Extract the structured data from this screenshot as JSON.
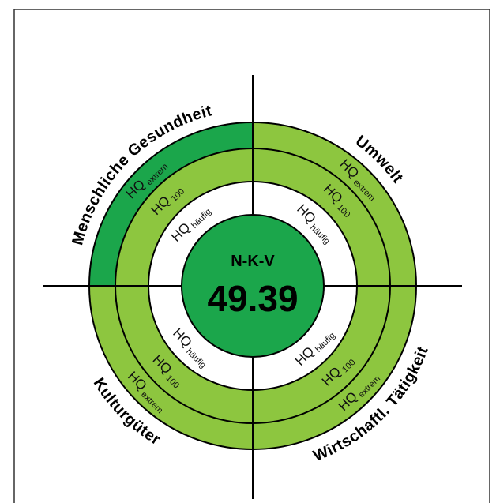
{
  "center": {
    "title": "N-K-V",
    "value": "49.39"
  },
  "quadrants": [
    {
      "label": "Menschliche Gesundheit",
      "rings": [
        {
          "main": "HQ",
          "sub": "extrem"
        },
        {
          "main": "HQ",
          "sub": "100"
        },
        {
          "main": "HQ",
          "sub": "häufig"
        }
      ]
    },
    {
      "label": "Umwelt",
      "rings": [
        {
          "main": "HQ",
          "sub": "extrem"
        },
        {
          "main": "HQ",
          "sub": "100"
        },
        {
          "main": "HQ",
          "sub": "häufig"
        }
      ]
    },
    {
      "label": "Wirtschaftl. Tätigkeit",
      "rings": [
        {
          "main": "HQ",
          "sub": "extrem"
        },
        {
          "main": "HQ",
          "sub": "100"
        },
        {
          "main": "HQ",
          "sub": "häufig"
        }
      ]
    },
    {
      "label": "Kulturgüter",
      "rings": [
        {
          "main": "HQ",
          "sub": "extrem"
        },
        {
          "main": "HQ",
          "sub": "100"
        },
        {
          "main": "HQ",
          "sub": "häufig"
        }
      ]
    }
  ]
}
